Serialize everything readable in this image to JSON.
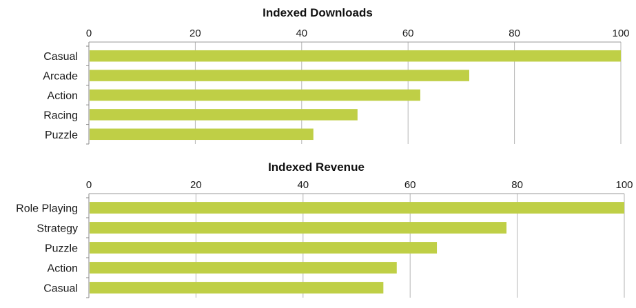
{
  "chart_data": [
    {
      "type": "bar",
      "orientation": "horizontal",
      "title": "Indexed Downloads",
      "categories": [
        "Casual",
        "Arcade",
        "Action",
        "Racing",
        "Puzzle"
      ],
      "values": [
        100,
        71.5,
        62.3,
        50.5,
        42.2
      ],
      "xlim": [
        0,
        100
      ],
      "xticks": [
        "0",
        "20",
        "40",
        "60",
        "80",
        "100"
      ],
      "axis_position": "top",
      "grid": true,
      "legend": "none",
      "bar_color": "#bfcf46"
    },
    {
      "type": "bar",
      "orientation": "horizontal",
      "title": "Indexed Revenue",
      "categories": [
        "Role Playing",
        "Strategy",
        "Puzzle",
        "Action",
        "Casual"
      ],
      "values": [
        100,
        78.0,
        65.0,
        57.5,
        55.0
      ],
      "xlim": [
        0,
        100
      ],
      "xticks": [
        "0",
        "20",
        "40",
        "60",
        "80",
        "100"
      ],
      "axis_position": "top",
      "grid": true,
      "legend": "none",
      "bar_color": "#bfcf46"
    }
  ]
}
